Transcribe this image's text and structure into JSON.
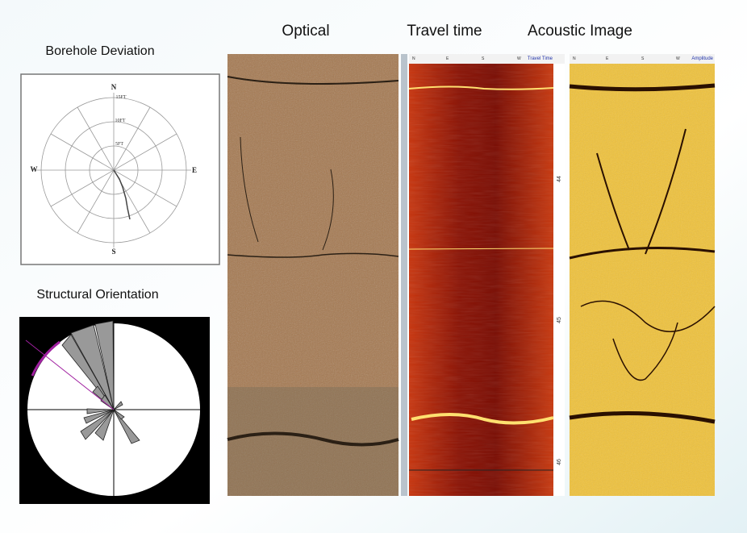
{
  "titles": {
    "optical": "Optical",
    "travel_time": "Travel time",
    "acoustic": "Acoustic Image"
  },
  "borehole_deviation": {
    "title": "Borehole Deviation",
    "directions": [
      "N",
      "E",
      "S",
      "W"
    ],
    "rings": [
      "5FT",
      "10FT",
      "15FT"
    ]
  },
  "structural_orientation": {
    "title": "Structural Orientation"
  },
  "travel_time_track": {
    "header": [
      "N",
      "E",
      "S",
      "W"
    ],
    "label": "Travel Time",
    "depths": [
      "44",
      "45",
      "46"
    ]
  },
  "amplitude_track": {
    "header": [
      "N",
      "E",
      "S",
      "W"
    ],
    "label": "Amplitude"
  }
}
